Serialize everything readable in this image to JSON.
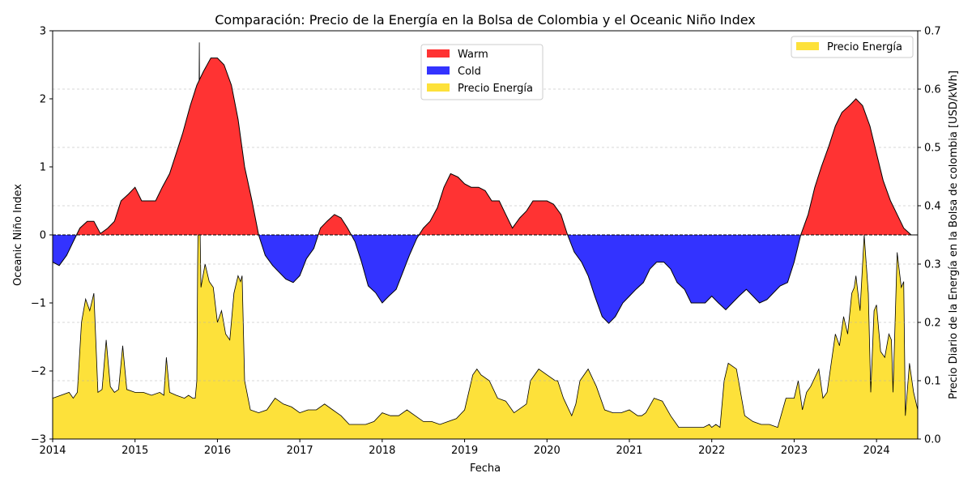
{
  "chart_data": {
    "type": "area",
    "title": "Comparación: Precio de la Energía en la Bolsa de Colombia y el Oceanic Niño Index",
    "xlabel": "Fecha",
    "ylabel_left": "Oceanic Niño Index",
    "ylabel_right": "Precio Diario de la Energía en la Bolsa de colombia [USD/kWh]",
    "xlim": [
      2014.0,
      2024.5
    ],
    "ylim_left": [
      -3,
      3
    ],
    "ylim_right": [
      0.0,
      0.7
    ],
    "x_ticks": [
      2014,
      2015,
      2016,
      2017,
      2018,
      2019,
      2020,
      2021,
      2022,
      2023,
      2024
    ],
    "x_tick_labels": [
      "2014",
      "2015",
      "2016",
      "2017",
      "2018",
      "2019",
      "2020",
      "2021",
      "2022",
      "2023",
      "2024"
    ],
    "y_left_ticks": [
      3,
      2,
      1,
      0,
      -1,
      -2,
      -3
    ],
    "y_left_tick_labels": [
      "3",
      "2",
      "1",
      "0",
      "−1",
      "−2",
      "−3"
    ],
    "y_right_ticks": [
      0.7,
      0.6,
      0.5,
      0.4,
      0.3,
      0.2,
      0.1,
      0.0
    ],
    "y_right_tick_labels": [
      "0.7",
      "0.6",
      "0.5",
      "0.4",
      "0.3",
      "0.2",
      "0.1",
      "0.0"
    ],
    "grid": "horizontal dashed (right axis)",
    "legend_main": {
      "placement": "upper-center",
      "entries": [
        {
          "label": "Warm",
          "color": "#ff3333"
        },
        {
          "label": "Cold",
          "color": "#3333ff"
        },
        {
          "label": "Precio Energía",
          "color": "#fde13a"
        }
      ]
    },
    "legend_secondary": {
      "placement": "top-right",
      "entries": [
        {
          "label": "Precio Energía",
          "color": "#fde13a"
        }
      ]
    },
    "colors": {
      "warm": "#ff3333",
      "cold": "#3333ff",
      "price": "#fde13a",
      "outline": "#000000"
    },
    "series": [
      {
        "name": "Oceanic Niño Index",
        "axis": "left",
        "x": [
          2014.0,
          2014.08,
          2014.17,
          2014.25,
          2014.33,
          2014.42,
          2014.5,
          2014.58,
          2014.67,
          2014.75,
          2014.83,
          2014.92,
          2015.0,
          2015.08,
          2015.17,
          2015.25,
          2015.33,
          2015.42,
          2015.5,
          2015.58,
          2015.67,
          2015.75,
          2015.83,
          2015.92,
          2016.0,
          2016.08,
          2016.17,
          2016.25,
          2016.33,
          2016.42,
          2016.5,
          2016.58,
          2016.67,
          2016.75,
          2016.83,
          2016.92,
          2017.0,
          2017.08,
          2017.17,
          2017.25,
          2017.33,
          2017.42,
          2017.5,
          2017.58,
          2017.67,
          2017.75,
          2017.83,
          2017.92,
          2018.0,
          2018.08,
          2018.17,
          2018.25,
          2018.33,
          2018.42,
          2018.5,
          2018.58,
          2018.67,
          2018.75,
          2018.83,
          2018.92,
          2019.0,
          2019.08,
          2019.17,
          2019.25,
          2019.33,
          2019.42,
          2019.5,
          2019.58,
          2019.67,
          2019.75,
          2019.83,
          2019.92,
          2020.0,
          2020.08,
          2020.17,
          2020.25,
          2020.33,
          2020.42,
          2020.5,
          2020.58,
          2020.67,
          2020.75,
          2020.83,
          2020.92,
          2021.0,
          2021.08,
          2021.17,
          2021.25,
          2021.33,
          2021.42,
          2021.5,
          2021.58,
          2021.67,
          2021.75,
          2021.83,
          2021.92,
          2022.0,
          2022.08,
          2022.17,
          2022.25,
          2022.33,
          2022.42,
          2022.5,
          2022.58,
          2022.67,
          2022.75,
          2022.83,
          2022.92,
          2023.0,
          2023.08,
          2023.17,
          2023.25,
          2023.33,
          2023.42,
          2023.5,
          2023.58,
          2023.67,
          2023.75,
          2023.83,
          2023.92,
          2024.0,
          2024.08,
          2024.17,
          2024.25,
          2024.33,
          2024.42,
          2024.5
        ],
        "y": [
          -0.4,
          -0.45,
          -0.3,
          -0.1,
          0.1,
          0.2,
          0.2,
          0.02,
          0.1,
          0.2,
          0.5,
          0.6,
          0.7,
          0.5,
          0.5,
          0.5,
          0.7,
          0.9,
          1.2,
          1.5,
          1.9,
          2.2,
          2.4,
          2.6,
          2.6,
          2.5,
          2.2,
          1.7,
          1.0,
          0.5,
          0.0,
          -0.3,
          -0.45,
          -0.55,
          -0.65,
          -0.7,
          -0.6,
          -0.35,
          -0.2,
          0.1,
          0.2,
          0.3,
          0.25,
          0.1,
          -0.1,
          -0.4,
          -0.75,
          -0.85,
          -1.0,
          -0.9,
          -0.8,
          -0.55,
          -0.3,
          -0.05,
          0.1,
          0.2,
          0.4,
          0.7,
          0.9,
          0.85,
          0.75,
          0.7,
          0.7,
          0.65,
          0.5,
          0.5,
          0.3,
          0.1,
          0.25,
          0.35,
          0.5,
          0.5,
          0.5,
          0.45,
          0.3,
          0.0,
          -0.25,
          -0.4,
          -0.6,
          -0.9,
          -1.2,
          -1.3,
          -1.2,
          -1.0,
          -0.9,
          -0.8,
          -0.7,
          -0.5,
          -0.4,
          -0.4,
          -0.5,
          -0.7,
          -0.8,
          -1.0,
          -1.0,
          -1.0,
          -0.9,
          -1.0,
          -1.1,
          -1.0,
          -0.9,
          -0.8,
          -0.9,
          -1.0,
          -0.95,
          -0.85,
          -0.75,
          -0.7,
          -0.4,
          0.0,
          0.3,
          0.7,
          1.0,
          1.3,
          1.6,
          1.8,
          1.9,
          2.0,
          1.9,
          1.6,
          1.2,
          0.8,
          0.5,
          0.3,
          0.1,
          0.0,
          0.0
        ]
      },
      {
        "name": "Precio Energía",
        "axis": "right",
        "x": [
          2014.0,
          2014.1,
          2014.2,
          2014.25,
          2014.3,
          2014.35,
          2014.4,
          2014.45,
          2014.5,
          2014.55,
          2014.6,
          2014.65,
          2014.7,
          2014.75,
          2014.8,
          2014.85,
          2014.9,
          2015.0,
          2015.1,
          2015.2,
          2015.3,
          2015.35,
          2015.38,
          2015.42,
          2015.5,
          2015.6,
          2015.65,
          2015.7,
          2015.73,
          2015.75,
          2015.76,
          2015.77,
          2015.78,
          2015.79,
          2015.8,
          2015.85,
          2015.9,
          2015.95,
          2016.0,
          2016.05,
          2016.1,
          2016.15,
          2016.2,
          2016.25,
          2016.28,
          2016.3,
          2016.33,
          2016.4,
          2016.5,
          2016.6,
          2016.7,
          2016.8,
          2016.9,
          2017.0,
          2017.1,
          2017.2,
          2017.3,
          2017.4,
          2017.5,
          2017.6,
          2017.7,
          2017.8,
          2017.9,
          2018.0,
          2018.1,
          2018.2,
          2018.3,
          2018.4,
          2018.5,
          2018.6,
          2018.7,
          2018.8,
          2018.9,
          2019.0,
          2019.1,
          2019.15,
          2019.2,
          2019.3,
          2019.4,
          2019.5,
          2019.6,
          2019.7,
          2019.75,
          2019.8,
          2019.9,
          2020.0,
          2020.1,
          2020.13,
          2020.2,
          2020.3,
          2020.35,
          2020.4,
          2020.5,
          2020.6,
          2020.7,
          2020.8,
          2020.9,
          2021.0,
          2021.1,
          2021.15,
          2021.2,
          2021.3,
          2021.4,
          2021.5,
          2021.6,
          2021.7,
          2021.8,
          2021.9,
          2021.97,
          2022.0,
          2022.05,
          2022.1,
          2022.15,
          2022.2,
          2022.3,
          2022.4,
          2022.5,
          2022.6,
          2022.7,
          2022.8,
          2022.9,
          2023.0,
          2023.05,
          2023.1,
          2023.15,
          2023.2,
          2023.3,
          2023.35,
          2023.4,
          2023.5,
          2023.55,
          2023.6,
          2023.65,
          2023.7,
          2023.73,
          2023.75,
          2023.8,
          2023.85,
          2023.9,
          2023.93,
          2023.97,
          2024.0,
          2024.05,
          2024.1,
          2024.15,
          2024.18,
          2024.2,
          2024.25,
          2024.3,
          2024.33,
          2024.35,
          2024.4,
          2024.45,
          2024.5
        ],
        "y": [
          0.07,
          0.075,
          0.08,
          0.07,
          0.08,
          0.2,
          0.24,
          0.22,
          0.25,
          0.08,
          0.085,
          0.17,
          0.09,
          0.08,
          0.085,
          0.16,
          0.085,
          0.08,
          0.08,
          0.075,
          0.08,
          0.075,
          0.14,
          0.08,
          0.075,
          0.07,
          0.075,
          0.07,
          0.07,
          0.1,
          0.3,
          0.42,
          0.68,
          0.35,
          0.26,
          0.3,
          0.27,
          0.26,
          0.2,
          0.22,
          0.18,
          0.17,
          0.25,
          0.28,
          0.27,
          0.28,
          0.1,
          0.05,
          0.045,
          0.05,
          0.07,
          0.06,
          0.055,
          0.045,
          0.05,
          0.05,
          0.06,
          0.05,
          0.04,
          0.025,
          0.025,
          0.025,
          0.03,
          0.045,
          0.04,
          0.04,
          0.05,
          0.04,
          0.03,
          0.03,
          0.025,
          0.03,
          0.035,
          0.05,
          0.11,
          0.12,
          0.11,
          0.1,
          0.07,
          0.065,
          0.045,
          0.055,
          0.06,
          0.1,
          0.12,
          0.11,
          0.1,
          0.1,
          0.07,
          0.04,
          0.06,
          0.1,
          0.12,
          0.09,
          0.05,
          0.045,
          0.045,
          0.05,
          0.04,
          0.04,
          0.045,
          0.07,
          0.065,
          0.04,
          0.02,
          0.02,
          0.02,
          0.02,
          0.025,
          0.02,
          0.025,
          0.02,
          0.1,
          0.13,
          0.12,
          0.04,
          0.03,
          0.025,
          0.025,
          0.02,
          0.07,
          0.07,
          0.1,
          0.05,
          0.08,
          0.09,
          0.12,
          0.07,
          0.08,
          0.18,
          0.16,
          0.21,
          0.18,
          0.25,
          0.26,
          0.28,
          0.22,
          0.35,
          0.25,
          0.08,
          0.22,
          0.23,
          0.15,
          0.14,
          0.18,
          0.17,
          0.08,
          0.32,
          0.26,
          0.27,
          0.04,
          0.13,
          0.08,
          0.05
        ]
      }
    ]
  }
}
